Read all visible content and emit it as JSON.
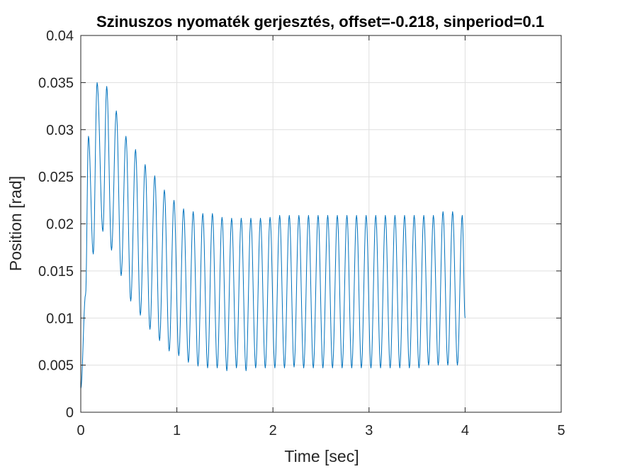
{
  "chart_data": {
    "type": "line",
    "title": "Szinuszos nyomaték gerjesztés, offset=-0.218, sinperiod=0.1",
    "xlabel": "Time [sec]",
    "ylabel": "Position [rad]",
    "xlim": [
      0,
      5
    ],
    "ylim": [
      0,
      0.04
    ],
    "xticks": [
      0,
      1,
      2,
      3,
      4,
      5
    ],
    "xtick_labels": [
      "0",
      "1",
      "2",
      "3",
      "4",
      "5"
    ],
    "yticks": [
      0,
      0.005,
      0.01,
      0.015,
      0.02,
      0.025,
      0.03,
      0.035,
      0.04
    ],
    "ytick_labels": [
      "0",
      "0.005",
      "0.01",
      "0.015",
      "0.02",
      "0.025",
      "0.03",
      "0.035",
      "0.04"
    ],
    "grid": true,
    "line_color": "#0072BD",
    "series": [
      {
        "x": [
          0.0,
          0.05,
          0.08,
          0.13,
          0.17,
          0.23,
          0.27,
          0.32,
          0.37,
          0.42,
          0.47,
          0.52,
          0.57,
          0.62,
          0.67,
          0.72,
          0.77,
          0.82,
          0.87,
          0.92,
          0.97,
          1.02,
          1.07,
          1.12,
          1.17,
          1.22,
          1.27,
          1.32,
          1.37,
          1.42,
          1.47,
          1.52,
          1.57,
          1.62,
          1.67,
          1.72,
          1.77,
          1.82,
          1.87,
          1.92,
          1.97,
          2.02,
          2.07,
          2.12,
          2.17,
          2.22,
          2.27,
          2.32,
          2.37,
          2.42,
          2.47,
          2.52,
          2.57,
          2.62,
          2.67,
          2.72,
          2.77,
          2.82,
          2.87,
          2.92,
          2.97,
          3.02,
          3.07,
          3.12,
          3.17,
          3.22,
          3.27,
          3.32,
          3.37,
          3.42,
          3.47,
          3.52,
          3.57,
          3.62,
          3.67,
          3.72,
          3.77,
          3.82,
          3.87,
          3.92,
          3.97,
          4.0
        ],
        "y": [
          0.0025,
          0.0125,
          0.0293,
          0.0168,
          0.035,
          0.0192,
          0.0346,
          0.0172,
          0.032,
          0.0145,
          0.0293,
          0.0118,
          0.0279,
          0.0103,
          0.0263,
          0.0088,
          0.0251,
          0.0076,
          0.0236,
          0.0065,
          0.0225,
          0.006,
          0.0216,
          0.0053,
          0.0213,
          0.0049,
          0.0211,
          0.0047,
          0.0211,
          0.0047,
          0.0207,
          0.0044,
          0.0206,
          0.0047,
          0.0206,
          0.0044,
          0.0206,
          0.0047,
          0.0206,
          0.0047,
          0.0207,
          0.0047,
          0.0209,
          0.0047,
          0.0209,
          0.0048,
          0.0209,
          0.0047,
          0.0209,
          0.0047,
          0.0209,
          0.0047,
          0.0209,
          0.0047,
          0.0209,
          0.0047,
          0.0209,
          0.0047,
          0.0209,
          0.0047,
          0.0209,
          0.0047,
          0.0209,
          0.0047,
          0.0209,
          0.0047,
          0.0209,
          0.0047,
          0.0209,
          0.0047,
          0.0209,
          0.0047,
          0.0209,
          0.005,
          0.0209,
          0.005,
          0.0213,
          0.005,
          0.0213,
          0.005,
          0.0209,
          0.01
        ]
      }
    ]
  }
}
